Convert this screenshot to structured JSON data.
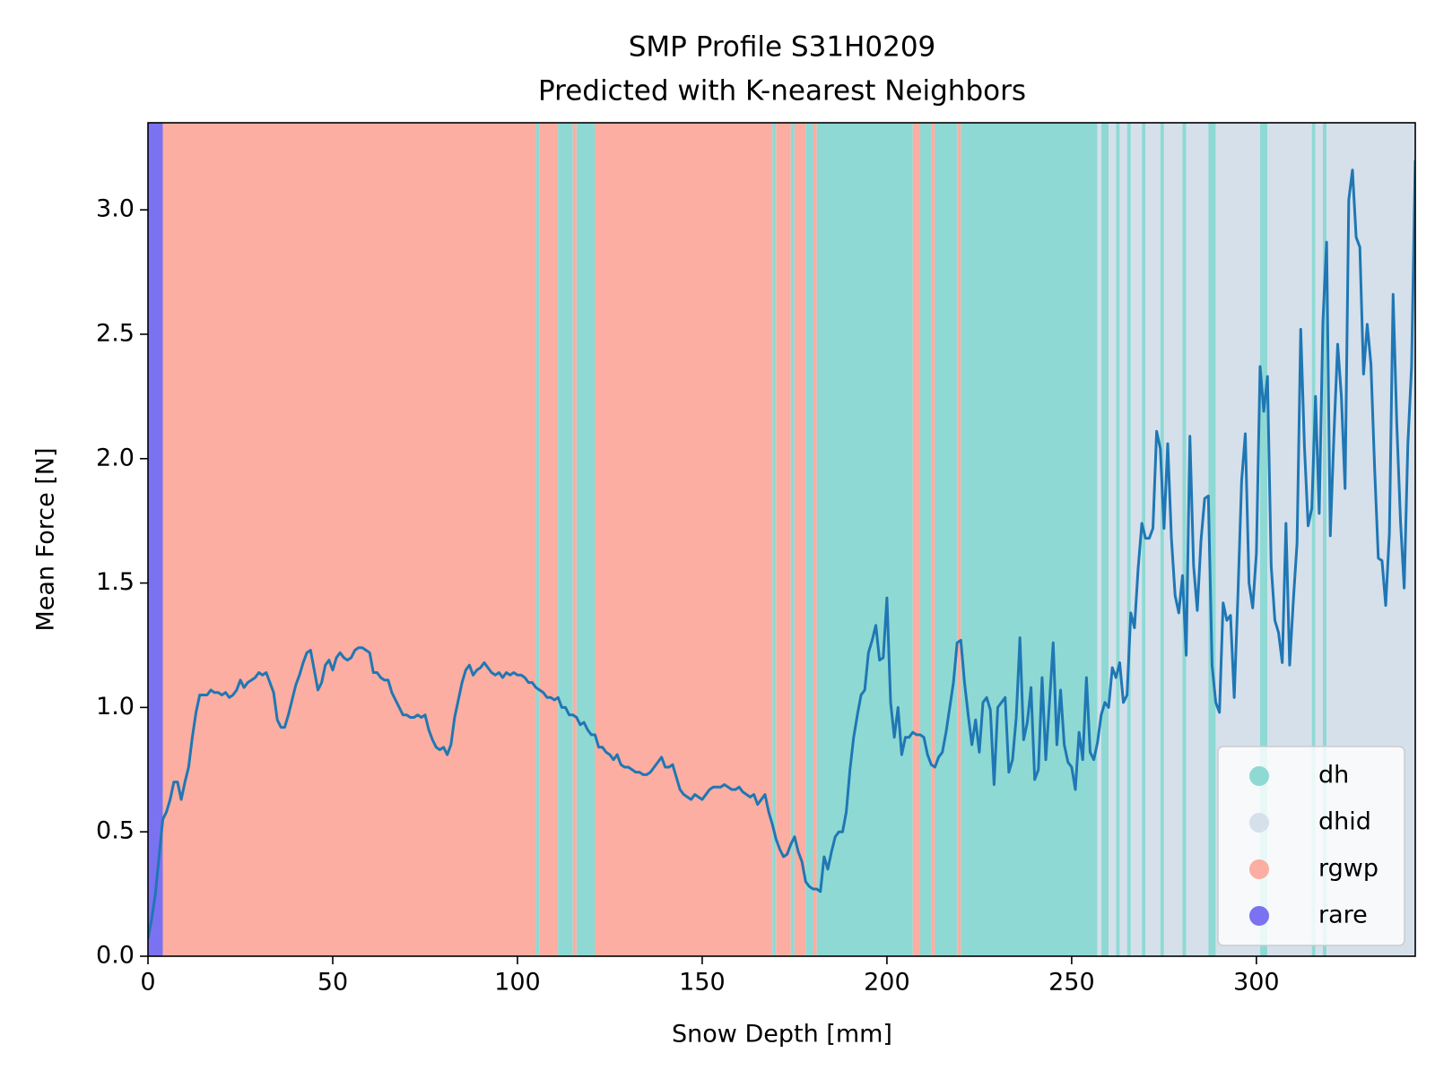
{
  "chart_data": {
    "type": "line",
    "title": "SMP Profile S31H0209",
    "subtitle": "Predicted with K-nearest Neighbors",
    "xlabel": "Snow Depth [mm]",
    "ylabel": "Mean Force [N]",
    "xlim": [
      0,
      343
    ],
    "ylim": [
      0,
      3.35
    ],
    "xticks": [
      0,
      50,
      100,
      150,
      200,
      250,
      300
    ],
    "yticks": [
      {
        "value": 0,
        "label": "0.0"
      },
      0.5,
      {
        "value": 1,
        "label": "1.0"
      },
      1.5,
      {
        "value": 2,
        "label": "2.0"
      },
      2.5,
      {
        "value": 3,
        "label": "3.0"
      }
    ],
    "line_color": "#1f77b4",
    "legend_loc": "lower right",
    "classes": [
      {
        "name": "dh",
        "color": "#8fd9d4"
      },
      {
        "name": "dhid",
        "color": "#d5e0eb"
      },
      {
        "name": "rgwp",
        "color": "#fbaea1"
      },
      {
        "name": "rare",
        "color": "#7b72f2"
      }
    ],
    "bands": [
      {
        "x0": 0,
        "x1": 4,
        "class": "rare"
      },
      {
        "x0": 4,
        "x1": 105,
        "class": "rgwp"
      },
      {
        "x0": 105,
        "x1": 106,
        "class": "dh"
      },
      {
        "x0": 106,
        "x1": 111,
        "class": "rgwp"
      },
      {
        "x0": 111,
        "x1": 115,
        "class": "dh"
      },
      {
        "x0": 115,
        "x1": 116,
        "class": "rgwp"
      },
      {
        "x0": 116,
        "x1": 121,
        "class": "dh"
      },
      {
        "x0": 121,
        "x1": 169,
        "class": "rgwp"
      },
      {
        "x0": 169,
        "x1": 170,
        "class": "dh"
      },
      {
        "x0": 170,
        "x1": 174,
        "class": "rgwp"
      },
      {
        "x0": 174,
        "x1": 175,
        "class": "dh"
      },
      {
        "x0": 175,
        "x1": 178,
        "class": "rgwp"
      },
      {
        "x0": 178,
        "x1": 180,
        "class": "dh"
      },
      {
        "x0": 180,
        "x1": 181,
        "class": "rgwp"
      },
      {
        "x0": 181,
        "x1": 207,
        "class": "dh"
      },
      {
        "x0": 207,
        "x1": 209,
        "class": "rgwp"
      },
      {
        "x0": 209,
        "x1": 212,
        "class": "dh"
      },
      {
        "x0": 212,
        "x1": 213,
        "class": "rgwp"
      },
      {
        "x0": 213,
        "x1": 219,
        "class": "dh"
      },
      {
        "x0": 219,
        "x1": 220,
        "class": "rgwp"
      },
      {
        "x0": 220,
        "x1": 257,
        "class": "dh"
      },
      {
        "x0": 257,
        "x1": 258,
        "class": "dhid"
      },
      {
        "x0": 258,
        "x1": 260,
        "class": "dh"
      },
      {
        "x0": 260,
        "x1": 262,
        "class": "dhid"
      },
      {
        "x0": 262,
        "x1": 263,
        "class": "dh"
      },
      {
        "x0": 263,
        "x1": 265,
        "class": "dhid"
      },
      {
        "x0": 265,
        "x1": 266,
        "class": "dh"
      },
      {
        "x0": 266,
        "x1": 269,
        "class": "dhid"
      },
      {
        "x0": 269,
        "x1": 270,
        "class": "dh"
      },
      {
        "x0": 270,
        "x1": 274,
        "class": "dhid"
      },
      {
        "x0": 274,
        "x1": 275,
        "class": "dh"
      },
      {
        "x0": 275,
        "x1": 280,
        "class": "dhid"
      },
      {
        "x0": 280,
        "x1": 281,
        "class": "dh"
      },
      {
        "x0": 281,
        "x1": 287,
        "class": "dhid"
      },
      {
        "x0": 287,
        "x1": 289,
        "class": "dh"
      },
      {
        "x0": 289,
        "x1": 301,
        "class": "dhid"
      },
      {
        "x0": 301,
        "x1": 303,
        "class": "dh"
      },
      {
        "x0": 303,
        "x1": 315,
        "class": "dhid"
      },
      {
        "x0": 315,
        "x1": 316,
        "class": "dh"
      },
      {
        "x0": 316,
        "x1": 318,
        "class": "dhid"
      },
      {
        "x0": 318,
        "x1": 319,
        "class": "dh"
      },
      {
        "x0": 319,
        "x1": 343,
        "class": "dhid"
      }
    ],
    "x": [
      0,
      1,
      2,
      3,
      4,
      5,
      6,
      7,
      8,
      9,
      10,
      11,
      12,
      13,
      14,
      15,
      16,
      17,
      18,
      19,
      20,
      21,
      22,
      23,
      24,
      25,
      26,
      27,
      28,
      29,
      30,
      31,
      32,
      33,
      34,
      35,
      36,
      37,
      38,
      39,
      40,
      41,
      42,
      43,
      44,
      45,
      46,
      47,
      48,
      49,
      50,
      51,
      52,
      53,
      54,
      55,
      56,
      57,
      58,
      59,
      60,
      61,
      62,
      63,
      64,
      65,
      66,
      67,
      68,
      69,
      70,
      71,
      72,
      73,
      74,
      75,
      76,
      77,
      78,
      79,
      80,
      81,
      82,
      83,
      84,
      85,
      86,
      87,
      88,
      89,
      90,
      91,
      92,
      93,
      94,
      95,
      96,
      97,
      98,
      99,
      100,
      101,
      102,
      103,
      104,
      105,
      106,
      107,
      108,
      109,
      110,
      111,
      112,
      113,
      114,
      115,
      116,
      117,
      118,
      119,
      120,
      121,
      122,
      123,
      124,
      125,
      126,
      127,
      128,
      129,
      130,
      131,
      132,
      133,
      134,
      135,
      136,
      137,
      138,
      139,
      140,
      141,
      142,
      143,
      144,
      145,
      146,
      147,
      148,
      149,
      150,
      151,
      152,
      153,
      154,
      155,
      156,
      157,
      158,
      159,
      160,
      161,
      162,
      163,
      164,
      165,
      166,
      167,
      168,
      169,
      170,
      171,
      172,
      173,
      174,
      175,
      176,
      177,
      178,
      179,
      180,
      181,
      182,
      183,
      184,
      185,
      186,
      187,
      188,
      189,
      190,
      191,
      192,
      193,
      194,
      195,
      196,
      197,
      198,
      199,
      200,
      201,
      202,
      203,
      204,
      205,
      206,
      207,
      208,
      209,
      210,
      211,
      212,
      213,
      214,
      215,
      216,
      217,
      218,
      219,
      220,
      221,
      222,
      223,
      224,
      225,
      226,
      227,
      228,
      229,
      230,
      231,
      232,
      233,
      234,
      235,
      236,
      237,
      238,
      239,
      240,
      241,
      242,
      243,
      244,
      245,
      246,
      247,
      248,
      249,
      250,
      251,
      252,
      253,
      254,
      255,
      256,
      257,
      258,
      259,
      260,
      261,
      262,
      263,
      264,
      265,
      266,
      267,
      268,
      269,
      270,
      271,
      272,
      273,
      274,
      275,
      276,
      277,
      278,
      279,
      280,
      281,
      282,
      283,
      284,
      285,
      286,
      287,
      288,
      289,
      290,
      291,
      292,
      293,
      294,
      295,
      296,
      297,
      298,
      299,
      300,
      301,
      302,
      303,
      304,
      305,
      306,
      307,
      308,
      309,
      310,
      311,
      312,
      313,
      314,
      315,
      316,
      317,
      318,
      319,
      320,
      321,
      322,
      323,
      324,
      325,
      326,
      327,
      328,
      329,
      330,
      331,
      332,
      333,
      334,
      335,
      336,
      337,
      338,
      339,
      340,
      341,
      342,
      343
    ],
    "values": [
      0.07,
      0.15,
      0.25,
      0.4,
      0.55,
      0.58,
      0.63,
      0.7,
      0.7,
      0.63,
      0.7,
      0.76,
      0.88,
      0.98,
      1.05,
      1.05,
      1.05,
      1.07,
      1.06,
      1.06,
      1.05,
      1.06,
      1.04,
      1.05,
      1.07,
      1.11,
      1.08,
      1.1,
      1.11,
      1.12,
      1.14,
      1.13,
      1.14,
      1.1,
      1.06,
      0.95,
      0.92,
      0.92,
      0.97,
      1.03,
      1.09,
      1.13,
      1.18,
      1.22,
      1.23,
      1.15,
      1.07,
      1.1,
      1.17,
      1.19,
      1.15,
      1.2,
      1.22,
      1.2,
      1.19,
      1.2,
      1.23,
      1.24,
      1.24,
      1.23,
      1.22,
      1.14,
      1.14,
      1.12,
      1.11,
      1.11,
      1.06,
      1.03,
      1.0,
      0.97,
      0.97,
      0.96,
      0.96,
      0.97,
      0.96,
      0.97,
      0.91,
      0.87,
      0.84,
      0.83,
      0.84,
      0.81,
      0.85,
      0.96,
      1.03,
      1.1,
      1.15,
      1.17,
      1.13,
      1.15,
      1.16,
      1.18,
      1.16,
      1.14,
      1.13,
      1.14,
      1.12,
      1.14,
      1.13,
      1.14,
      1.13,
      1.13,
      1.12,
      1.1,
      1.1,
      1.08,
      1.07,
      1.06,
      1.04,
      1.04,
      1.03,
      1.04,
      1.0,
      1.0,
      0.97,
      0.97,
      0.96,
      0.93,
      0.94,
      0.91,
      0.89,
      0.89,
      0.84,
      0.84,
      0.82,
      0.81,
      0.79,
      0.81,
      0.77,
      0.76,
      0.76,
      0.75,
      0.74,
      0.74,
      0.73,
      0.73,
      0.74,
      0.76,
      0.78,
      0.8,
      0.76,
      0.76,
      0.77,
      0.72,
      0.67,
      0.65,
      0.64,
      0.63,
      0.65,
      0.64,
      0.63,
      0.65,
      0.67,
      0.68,
      0.68,
      0.68,
      0.69,
      0.68,
      0.67,
      0.67,
      0.68,
      0.66,
      0.65,
      0.64,
      0.65,
      0.61,
      0.63,
      0.65,
      0.58,
      0.53,
      0.47,
      0.43,
      0.4,
      0.41,
      0.45,
      0.48,
      0.42,
      0.38,
      0.3,
      0.28,
      0.27,
      0.27,
      0.26,
      0.4,
      0.35,
      0.42,
      0.48,
      0.5,
      0.5,
      0.58,
      0.75,
      0.88,
      0.97,
      1.05,
      1.07,
      1.22,
      1.27,
      1.33,
      1.19,
      1.2,
      1.44,
      1.02,
      0.88,
      1.0,
      0.81,
      0.88,
      0.88,
      0.9,
      0.89,
      0.89,
      0.88,
      0.81,
      0.77,
      0.76,
      0.8,
      0.82,
      0.9,
      1.0,
      1.1,
      1.26,
      1.27,
      1.1,
      0.97,
      0.85,
      0.95,
      0.82,
      1.02,
      1.04,
      0.99,
      0.69,
      1.0,
      1.02,
      1.04,
      0.74,
      0.79,
      0.96,
      1.28,
      0.87,
      0.94,
      1.08,
      0.71,
      0.75,
      1.12,
      0.79,
      1.02,
      1.26,
      0.85,
      1.07,
      0.85,
      0.78,
      0.76,
      0.67,
      0.9,
      0.79,
      1.12,
      0.82,
      0.79,
      0.86,
      0.97,
      1.02,
      1.0,
      1.16,
      1.12,
      1.18,
      1.02,
      1.05,
      1.38,
      1.32,
      1.56,
      1.74,
      1.68,
      1.68,
      1.72,
      2.11,
      2.04,
      1.72,
      2.06,
      1.68,
      1.45,
      1.38,
      1.53,
      1.21,
      2.09,
      1.57,
      1.39,
      1.67,
      1.84,
      1.85,
      1.17,
      1.02,
      0.98,
      1.42,
      1.35,
      1.37,
      1.04,
      1.45,
      1.91,
      2.1,
      1.5,
      1.4,
      1.62,
      2.37,
      2.19,
      2.33,
      1.57,
      1.35,
      1.3,
      1.18,
      1.74,
      1.17,
      1.43,
      1.66,
      2.52,
      2.05,
      1.73,
      1.8,
      2.25,
      1.78,
      2.55,
      2.87,
      1.69,
      2.1,
      2.46,
      2.25,
      1.88,
      3.04,
      3.16,
      2.89,
      2.85,
      2.34,
      2.54,
      2.38,
      1.96,
      1.6,
      1.59,
      1.41,
      1.7,
      2.66,
      2.14,
      1.75,
      1.48,
      2.06,
      2.37,
      3.2
    ]
  }
}
